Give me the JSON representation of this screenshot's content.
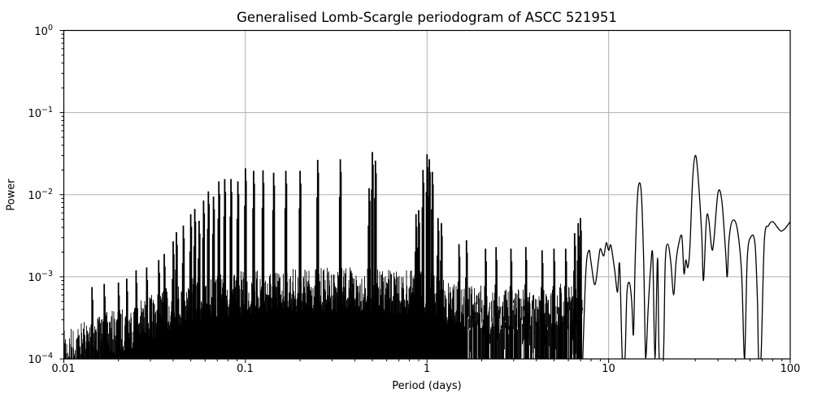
{
  "chart_data": {
    "type": "line",
    "title": "Generalised Lomb-Scargle periodogram of ASCC 521951",
    "xlabel": "Period (days)",
    "ylabel": "Power",
    "xscale": "log",
    "yscale": "log",
    "xlim": [
      0.01,
      100
    ],
    "ylim": [
      0.0001,
      1
    ],
    "grid": true,
    "legend": null,
    "series_color": "#000000",
    "grid_color": "#b0b0b0",
    "x_ticks": [
      {
        "value": 0.01,
        "label": "0.01"
      },
      {
        "value": 0.1,
        "label": "0.1"
      },
      {
        "value": 1,
        "label": "1"
      },
      {
        "value": 10,
        "label": "10"
      },
      {
        "value": 100,
        "label": "100"
      }
    ],
    "y_ticks": [
      {
        "value": 1,
        "base": "10",
        "exp": "0"
      },
      {
        "value": 0.1,
        "base": "10",
        "exp": "−1"
      },
      {
        "value": 0.01,
        "base": "10",
        "exp": "−2"
      },
      {
        "value": 0.001,
        "base": "10",
        "exp": "−3"
      },
      {
        "value": 0.0001,
        "base": "10",
        "exp": "−4"
      }
    ],
    "noise_envelope": [
      [
        0.01,
        0.00022
      ],
      [
        0.012,
        0.00028
      ],
      [
        0.015,
        0.00035
      ],
      [
        0.02,
        0.0004
      ],
      [
        0.025,
        0.0005
      ],
      [
        0.03,
        0.0006
      ],
      [
        0.04,
        0.0008
      ],
      [
        0.05,
        0.00095
      ],
      [
        0.07,
        0.0011
      ],
      [
        0.1,
        0.0012
      ],
      [
        0.2,
        0.0013
      ],
      [
        0.4,
        0.0013
      ],
      [
        0.7,
        0.0012
      ],
      [
        1.0,
        0.0012
      ],
      [
        1.3,
        0.0009
      ],
      [
        2.0,
        0.0007
      ],
      [
        3.0,
        0.0007
      ],
      [
        5.0,
        0.0008
      ],
      [
        7.0,
        0.0009
      ]
    ],
    "peaks": [
      [
        0.0143,
        0.00075
      ],
      [
        0.0167,
        0.00082
      ],
      [
        0.02,
        0.00085
      ],
      [
        0.0222,
        0.00095
      ],
      [
        0.025,
        0.0012
      ],
      [
        0.0286,
        0.0013
      ],
      [
        0.0333,
        0.0016
      ],
      [
        0.0357,
        0.0019
      ],
      [
        0.04,
        0.0027
      ],
      [
        0.0417,
        0.0035
      ],
      [
        0.0455,
        0.0042
      ],
      [
        0.05,
        0.0058
      ],
      [
        0.0526,
        0.0067
      ],
      [
        0.0556,
        0.0048
      ],
      [
        0.0588,
        0.0085
      ],
      [
        0.0625,
        0.011
      ],
      [
        0.0667,
        0.0095
      ],
      [
        0.0714,
        0.0145
      ],
      [
        0.0769,
        0.0155
      ],
      [
        0.0833,
        0.0155
      ],
      [
        0.0909,
        0.0145
      ],
      [
        0.1,
        0.021
      ],
      [
        0.111,
        0.0195
      ],
      [
        0.125,
        0.0198
      ],
      [
        0.143,
        0.0185
      ],
      [
        0.167,
        0.0195
      ],
      [
        0.2,
        0.0195
      ],
      [
        0.25,
        0.0265
      ],
      [
        0.333,
        0.027
      ],
      [
        0.5,
        0.033
      ],
      [
        0.52,
        0.026
      ],
      [
        0.48,
        0.012
      ],
      [
        0.95,
        0.02
      ],
      [
        1.0,
        0.031
      ],
      [
        1.03,
        0.027
      ],
      [
        1.07,
        0.019
      ],
      [
        0.9,
        0.0065
      ],
      [
        0.87,
        0.0058
      ],
      [
        1.15,
        0.0052
      ],
      [
        1.2,
        0.0045
      ],
      [
        1.5,
        0.0025
      ],
      [
        1.65,
        0.0028
      ],
      [
        2.1,
        0.0022
      ],
      [
        2.4,
        0.0023
      ],
      [
        2.9,
        0.0022
      ],
      [
        3.5,
        0.0023
      ],
      [
        4.3,
        0.0021
      ],
      [
        5.0,
        0.0022
      ],
      [
        5.8,
        0.0022
      ],
      [
        6.5,
        0.0034
      ],
      [
        6.8,
        0.0045
      ],
      [
        7.0,
        0.0052
      ]
    ],
    "smooth_curve": [
      [
        7.2,
        0.0001
      ],
      [
        7.5,
        0.0012
      ],
      [
        7.8,
        0.0021
      ],
      [
        8.0,
        0.0015
      ],
      [
        8.4,
        0.0008
      ],
      [
        8.8,
        0.0016
      ],
      [
        9.0,
        0.0022
      ],
      [
        9.4,
        0.0018
      ],
      [
        9.7,
        0.0026
      ],
      [
        10.0,
        0.0021
      ],
      [
        10.3,
        0.0024
      ],
      [
        10.8,
        0.0012
      ],
      [
        11.2,
        0.00065
      ],
      [
        11.5,
        0.0014
      ],
      [
        11.9,
        0.0001
      ],
      [
        12.3,
        0.0001
      ],
      [
        12.6,
        0.0006
      ],
      [
        13.0,
        0.00085
      ],
      [
        13.4,
        0.0005
      ],
      [
        13.7,
        0.0002
      ],
      [
        14.0,
        0.0016
      ],
      [
        14.4,
        0.009
      ],
      [
        14.8,
        0.014
      ],
      [
        15.2,
        0.009
      ],
      [
        15.6,
        0.0015
      ],
      [
        16.0,
        0.0001
      ],
      [
        16.5,
        0.0004
      ],
      [
        17.0,
        0.0012
      ],
      [
        17.5,
        0.0018
      ],
      [
        18.0,
        0.0001
      ],
      [
        18.6,
        0.0017
      ],
      [
        19.0,
        0.0001
      ],
      [
        20.0,
        0.0001
      ],
      [
        20.5,
        0.0015
      ],
      [
        21.2,
        0.0025
      ],
      [
        22.0,
        0.0015
      ],
      [
        22.8,
        0.0006
      ],
      [
        23.5,
        0.0015
      ],
      [
        24.3,
        0.0025
      ],
      [
        25.3,
        0.0031
      ],
      [
        26.0,
        0.0011
      ],
      [
        26.6,
        0.0016
      ],
      [
        27.3,
        0.0013
      ],
      [
        28.0,
        0.0022
      ],
      [
        29.0,
        0.015
      ],
      [
        30.0,
        0.03
      ],
      [
        31.0,
        0.018
      ],
      [
        32.5,
        0.0035
      ],
      [
        33.3,
        0.0009
      ],
      [
        34.5,
        0.0048
      ],
      [
        35.5,
        0.0052
      ],
      [
        37.0,
        0.0022
      ],
      [
        38.0,
        0.0028
      ],
      [
        40.0,
        0.0105
      ],
      [
        42.0,
        0.0085
      ],
      [
        44.0,
        0.0021
      ],
      [
        45.0,
        0.001
      ],
      [
        46.0,
        0.0028
      ],
      [
        48.0,
        0.0048
      ],
      [
        51.0,
        0.0039
      ],
      [
        54.0,
        0.0011
      ],
      [
        56.0,
        0.0001
      ],
      [
        58.0,
        0.0017
      ],
      [
        61.0,
        0.0031
      ],
      [
        64.0,
        0.0025
      ],
      [
        66.0,
        0.0005
      ],
      [
        67.0,
        0.0001
      ],
      [
        69.0,
        0.0001
      ],
      [
        72.0,
        0.0027
      ],
      [
        76.0,
        0.0042
      ],
      [
        80.0,
        0.0047
      ],
      [
        85.0,
        0.004
      ],
      [
        89.0,
        0.0036
      ],
      [
        94.0,
        0.0039
      ],
      [
        100.0,
        0.0047
      ]
    ]
  }
}
